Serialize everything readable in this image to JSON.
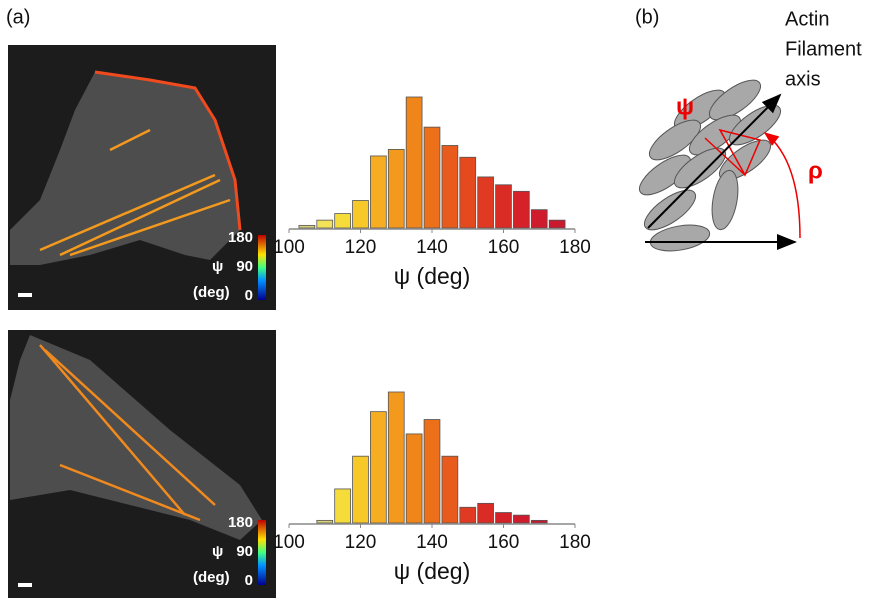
{
  "chart_data": [
    {
      "type": "histogram",
      "xlabel": "ψ (deg)",
      "xlim": [
        100,
        180
      ],
      "xticks": [
        100,
        120,
        140,
        160,
        180
      ],
      "ylim": [
        0,
        100
      ],
      "bins": [
        102.5,
        107.5,
        112.5,
        117.5,
        122.5,
        127.5,
        132.5,
        137.5,
        142.5,
        147.5,
        152.5,
        157.5,
        162.5,
        167.5,
        172.5,
        177.5
      ],
      "values": [
        2,
        6,
        11,
        21,
        55,
        60,
        100,
        77,
        63,
        54,
        39,
        33,
        28,
        14,
        6
      ],
      "colors": [
        "#d8d27a",
        "#f2e25a",
        "#f5dc3a",
        "#f7c928",
        "#f6ad22",
        "#f39a1e",
        "#f0861a",
        "#ec6f1a",
        "#e85b1c",
        "#e54a1e",
        "#e03a22",
        "#da2c25",
        "#d42228",
        "#cf1c2c",
        "#c9192f"
      ]
    },
    {
      "type": "histogram",
      "xlabel": "ψ (deg)",
      "xlim": [
        100,
        180
      ],
      "xticks": [
        100,
        120,
        140,
        160,
        180
      ],
      "ylim": [
        0,
        100
      ],
      "bins": [
        107.5,
        112.5,
        117.5,
        122.5,
        127.5,
        132.5,
        137.5,
        142.5,
        147.5,
        152.5,
        157.5,
        162.5,
        167.5,
        172.5
      ],
      "values": [
        2,
        26,
        51,
        85,
        100,
        68,
        79,
        51,
        12,
        15,
        8,
        6,
        2
      ],
      "colors": [
        "#d8d27a",
        "#f5dc3a",
        "#f7c928",
        "#f6ad22",
        "#f39a1e",
        "#f0861a",
        "#ec6f1a",
        "#e85b1c",
        "#e03a22",
        "#da2c25",
        "#d42228",
        "#cf1c2c",
        "#c9192f"
      ]
    }
  ],
  "panel_labels": [
    "(a)",
    "(b)"
  ],
  "images": [
    {
      "colorbar_ticks": [
        180,
        90,
        0
      ],
      "colorbar_symbol": "ψ",
      "colorbar_unit": "(deg)"
    },
    {
      "colorbar_ticks": [
        180,
        90,
        0
      ],
      "colorbar_symbol": "ψ",
      "colorbar_unit": "(deg)"
    }
  ],
  "diagram": {
    "axis_label": [
      "Actin",
      "Filament",
      "axis"
    ],
    "psi": "ψ",
    "rho": "ρ"
  }
}
